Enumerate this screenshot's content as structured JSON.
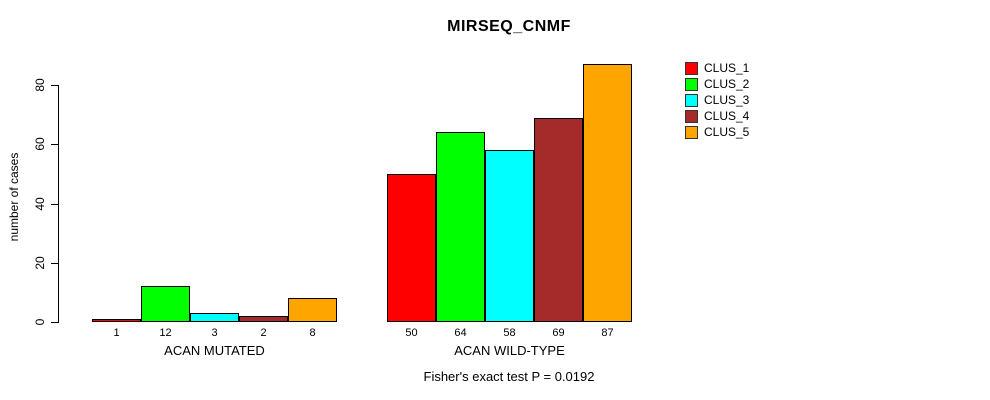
{
  "chart_data": {
    "type": "bar",
    "title": "MIRSEQ_CNMF",
    "ylabel": "number of cases",
    "xlabel": "",
    "ylim": [
      0,
      88
    ],
    "yticks": [
      0,
      20,
      40,
      60,
      80
    ],
    "grid": false,
    "legend_position": "right",
    "categories": [
      "ACAN MUTATED",
      "ACAN WILD-TYPE"
    ],
    "series": [
      {
        "name": "CLUS_1",
        "color": "#FF0000",
        "values": [
          1,
          50
        ]
      },
      {
        "name": "CLUS_2",
        "color": "#00FF00",
        "values": [
          12,
          64
        ]
      },
      {
        "name": "CLUS_3",
        "color": "#00FFFF",
        "values": [
          3,
          58
        ]
      },
      {
        "name": "CLUS_4",
        "color": "#A52A2A",
        "values": [
          2,
          69
        ]
      },
      {
        "name": "CLUS_5",
        "color": "#FFA500",
        "values": [
          8,
          87
        ]
      }
    ],
    "bar_value_labels_shown": true,
    "annotation": "Fisher's exact test P = 0.0192"
  }
}
